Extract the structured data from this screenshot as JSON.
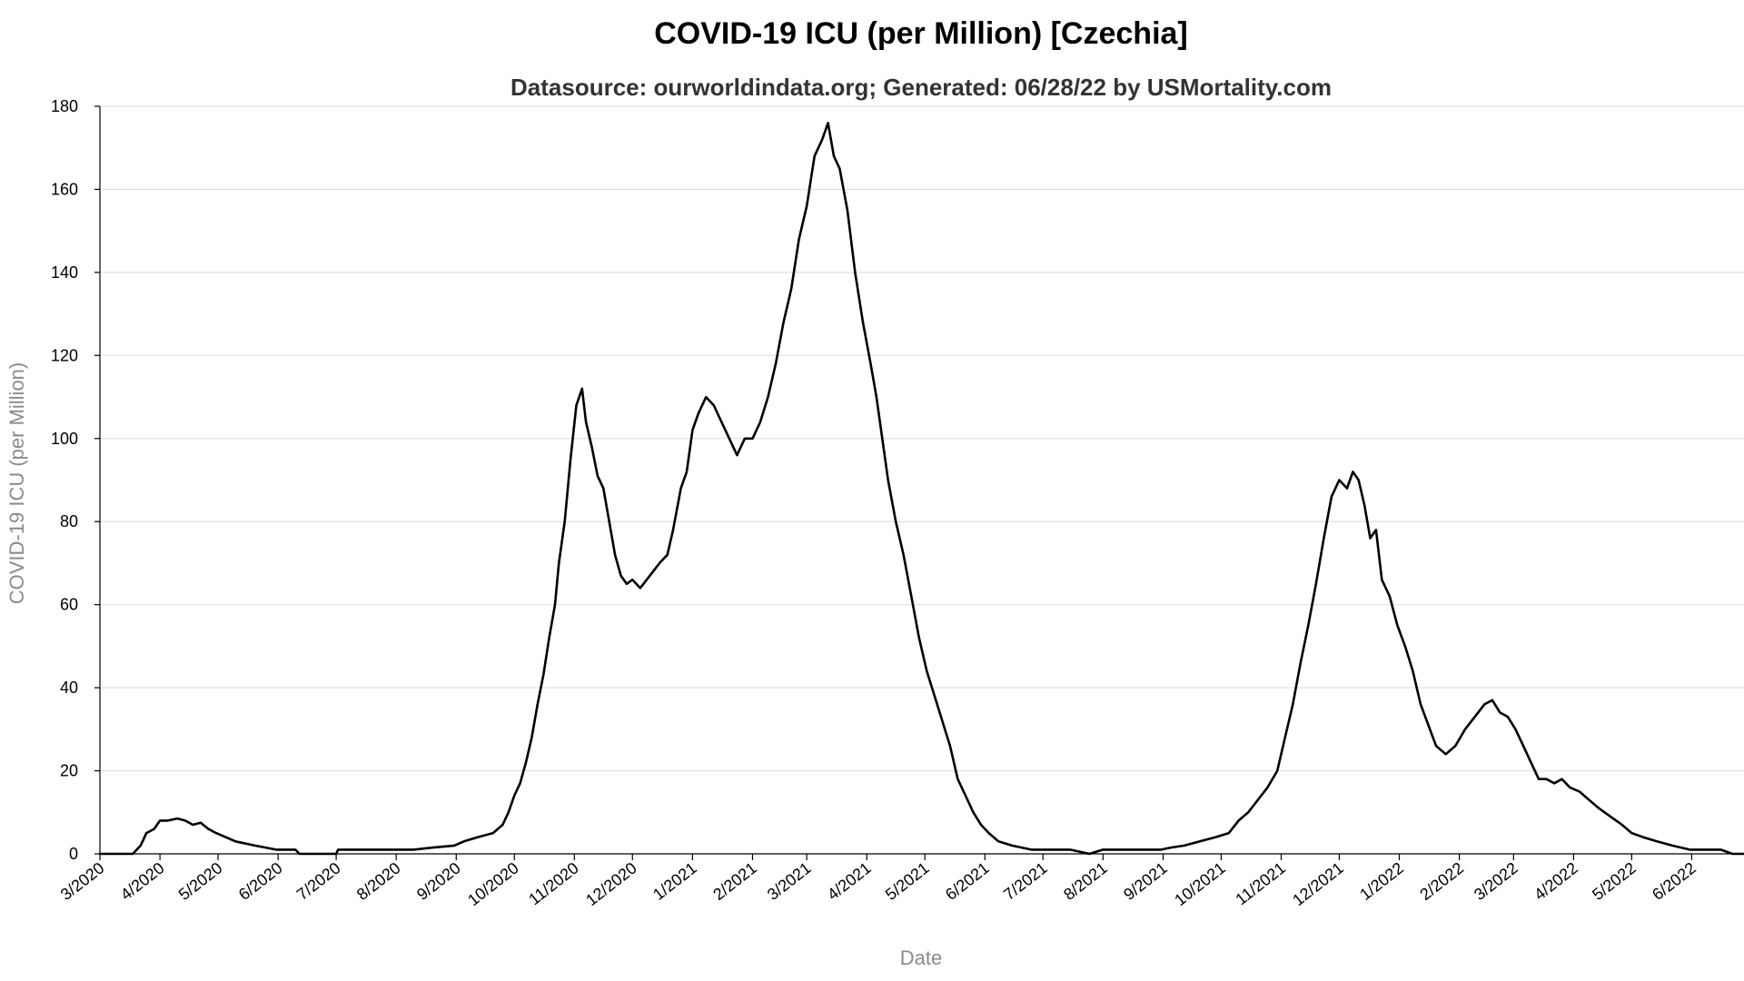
{
  "chart_data": {
    "type": "line",
    "title": "COVID-19 ICU (per Million) [Czechia]",
    "subtitle": "Datasource: ourworldindata.org; Generated: 06/28/22 by USMortality.com",
    "xlabel": "Date",
    "ylabel": "COVID-19 ICU (per Million)",
    "x_range": [
      "2020-03-01",
      "2022-06-28"
    ],
    "ylim": [
      0,
      180
    ],
    "y_ticks": [
      0,
      20,
      40,
      60,
      80,
      100,
      120,
      140,
      160,
      180
    ],
    "x_ticks": [
      {
        "date": "2020-03-01",
        "label": "3/2020"
      },
      {
        "date": "2020-04-01",
        "label": "4/2020"
      },
      {
        "date": "2020-05-01",
        "label": "5/2020"
      },
      {
        "date": "2020-06-01",
        "label": "6/2020"
      },
      {
        "date": "2020-07-01",
        "label": "7/2020"
      },
      {
        "date": "2020-08-01",
        "label": "8/2020"
      },
      {
        "date": "2020-09-01",
        "label": "9/2020"
      },
      {
        "date": "2020-10-01",
        "label": "10/2020"
      },
      {
        "date": "2020-11-01",
        "label": "11/2020"
      },
      {
        "date": "2020-12-01",
        "label": "12/2020"
      },
      {
        "date": "2021-01-01",
        "label": "1/2021"
      },
      {
        "date": "2021-02-01",
        "label": "2/2021"
      },
      {
        "date": "2021-03-01",
        "label": "3/2021"
      },
      {
        "date": "2021-04-01",
        "label": "4/2021"
      },
      {
        "date": "2021-05-01",
        "label": "5/2021"
      },
      {
        "date": "2021-06-01",
        "label": "6/2021"
      },
      {
        "date": "2021-07-01",
        "label": "7/2021"
      },
      {
        "date": "2021-08-01",
        "label": "8/2021"
      },
      {
        "date": "2021-09-01",
        "label": "9/2021"
      },
      {
        "date": "2021-10-01",
        "label": "10/2021"
      },
      {
        "date": "2021-11-01",
        "label": "11/2021"
      },
      {
        "date": "2021-12-01",
        "label": "12/2021"
      },
      {
        "date": "2022-01-01",
        "label": "1/2022"
      },
      {
        "date": "2022-02-01",
        "label": "2/2022"
      },
      {
        "date": "2022-03-01",
        "label": "3/2022"
      },
      {
        "date": "2022-04-01",
        "label": "4/2022"
      },
      {
        "date": "2022-05-01",
        "label": "5/2022"
      },
      {
        "date": "2022-06-01",
        "label": "6/2022"
      }
    ],
    "grid": true,
    "legend": "none",
    "line_color": "#000000",
    "series": [
      {
        "points": [
          [
            "2020-03-01",
            0
          ],
          [
            "2020-03-18",
            0
          ],
          [
            "2020-03-22",
            2
          ],
          [
            "2020-03-25",
            5
          ],
          [
            "2020-03-29",
            6
          ],
          [
            "2020-04-01",
            8
          ],
          [
            "2020-04-05",
            8
          ],
          [
            "2020-04-10",
            8.5
          ],
          [
            "2020-04-14",
            8
          ],
          [
            "2020-04-18",
            7
          ],
          [
            "2020-04-22",
            7.5
          ],
          [
            "2020-04-26",
            6
          ],
          [
            "2020-04-30",
            5
          ],
          [
            "2020-05-05",
            4
          ],
          [
            "2020-05-10",
            3
          ],
          [
            "2020-05-20",
            2
          ],
          [
            "2020-05-31",
            1
          ],
          [
            "2020-06-10",
            1
          ],
          [
            "2020-06-12",
            0
          ],
          [
            "2020-07-01",
            0
          ],
          [
            "2020-07-02",
            1
          ],
          [
            "2020-07-20",
            1
          ],
          [
            "2020-08-10",
            1
          ],
          [
            "2020-08-20",
            1.5
          ],
          [
            "2020-08-31",
            2
          ],
          [
            "2020-09-05",
            3
          ],
          [
            "2020-09-12",
            4
          ],
          [
            "2020-09-20",
            5
          ],
          [
            "2020-09-25",
            7
          ],
          [
            "2020-09-28",
            10
          ],
          [
            "2020-10-01",
            14
          ],
          [
            "2020-10-04",
            17
          ],
          [
            "2020-10-07",
            22
          ],
          [
            "2020-10-10",
            28
          ],
          [
            "2020-10-13",
            36
          ],
          [
            "2020-10-16",
            43
          ],
          [
            "2020-10-19",
            52
          ],
          [
            "2020-10-22",
            60
          ],
          [
            "2020-10-24",
            70
          ],
          [
            "2020-10-27",
            80
          ],
          [
            "2020-10-30",
            95
          ],
          [
            "2020-11-02",
            108
          ],
          [
            "2020-11-05",
            112
          ],
          [
            "2020-11-07",
            104
          ],
          [
            "2020-11-10",
            98
          ],
          [
            "2020-11-13",
            91
          ],
          [
            "2020-11-16",
            88
          ],
          [
            "2020-11-19",
            80
          ],
          [
            "2020-11-22",
            72
          ],
          [
            "2020-11-25",
            67
          ],
          [
            "2020-11-28",
            65
          ],
          [
            "2020-12-01",
            66
          ],
          [
            "2020-12-05",
            64
          ],
          [
            "2020-12-10",
            67
          ],
          [
            "2020-12-15",
            70
          ],
          [
            "2020-12-19",
            72
          ],
          [
            "2020-12-22",
            78
          ],
          [
            "2020-12-26",
            88
          ],
          [
            "2020-12-29",
            92
          ],
          [
            "2021-01-01",
            102
          ],
          [
            "2021-01-04",
            106
          ],
          [
            "2021-01-08",
            110
          ],
          [
            "2021-01-12",
            108
          ],
          [
            "2021-01-16",
            104
          ],
          [
            "2021-01-20",
            100
          ],
          [
            "2021-01-24",
            96
          ],
          [
            "2021-01-28",
            100
          ],
          [
            "2021-02-01",
            100
          ],
          [
            "2021-02-05",
            104
          ],
          [
            "2021-02-09",
            110
          ],
          [
            "2021-02-13",
            118
          ],
          [
            "2021-02-17",
            128
          ],
          [
            "2021-02-21",
            136
          ],
          [
            "2021-02-25",
            148
          ],
          [
            "2021-03-01",
            156
          ],
          [
            "2021-03-05",
            168
          ],
          [
            "2021-03-09",
            172
          ],
          [
            "2021-03-12",
            176
          ],
          [
            "2021-03-15",
            168
          ],
          [
            "2021-03-18",
            165
          ],
          [
            "2021-03-22",
            155
          ],
          [
            "2021-03-26",
            140
          ],
          [
            "2021-03-30",
            128
          ],
          [
            "2021-04-03",
            118
          ],
          [
            "2021-04-06",
            110
          ],
          [
            "2021-04-09",
            100
          ],
          [
            "2021-04-12",
            90
          ],
          [
            "2021-04-16",
            80
          ],
          [
            "2021-04-20",
            72
          ],
          [
            "2021-04-24",
            62
          ],
          [
            "2021-04-28",
            52
          ],
          [
            "2021-05-02",
            44
          ],
          [
            "2021-05-06",
            38
          ],
          [
            "2021-05-10",
            32
          ],
          [
            "2021-05-14",
            26
          ],
          [
            "2021-05-18",
            18
          ],
          [
            "2021-05-22",
            14
          ],
          [
            "2021-05-26",
            10
          ],
          [
            "2021-05-30",
            7
          ],
          [
            "2021-06-03",
            5
          ],
          [
            "2021-06-08",
            3
          ],
          [
            "2021-06-15",
            2
          ],
          [
            "2021-06-25",
            1
          ],
          [
            "2021-07-15",
            1
          ],
          [
            "2021-07-25",
            0
          ],
          [
            "2021-08-01",
            1
          ],
          [
            "2021-08-31",
            1
          ],
          [
            "2021-09-05",
            1.5
          ],
          [
            "2021-09-12",
            2
          ],
          [
            "2021-09-20",
            3
          ],
          [
            "2021-09-28",
            4
          ],
          [
            "2021-10-05",
            5
          ],
          [
            "2021-10-10",
            8
          ],
          [
            "2021-10-15",
            10
          ],
          [
            "2021-10-20",
            13
          ],
          [
            "2021-10-25",
            16
          ],
          [
            "2021-10-30",
            20
          ],
          [
            "2021-11-03",
            28
          ],
          [
            "2021-11-07",
            36
          ],
          [
            "2021-11-11",
            46
          ],
          [
            "2021-11-15",
            55
          ],
          [
            "2021-11-19",
            65
          ],
          [
            "2021-11-23",
            76
          ],
          [
            "2021-11-27",
            86
          ],
          [
            "2021-12-01",
            90
          ],
          [
            "2021-12-05",
            88
          ],
          [
            "2021-12-08",
            92
          ],
          [
            "2021-12-11",
            90
          ],
          [
            "2021-12-14",
            84
          ],
          [
            "2021-12-17",
            76
          ],
          [
            "2021-12-20",
            78
          ],
          [
            "2021-12-23",
            66
          ],
          [
            "2021-12-27",
            62
          ],
          [
            "2021-12-31",
            55
          ],
          [
            "2022-01-04",
            50
          ],
          [
            "2022-01-08",
            44
          ],
          [
            "2022-01-12",
            36
          ],
          [
            "2022-01-16",
            31
          ],
          [
            "2022-01-20",
            26
          ],
          [
            "2022-01-25",
            24
          ],
          [
            "2022-01-30",
            26
          ],
          [
            "2022-02-04",
            30
          ],
          [
            "2022-02-09",
            33
          ],
          [
            "2022-02-14",
            36
          ],
          [
            "2022-02-18",
            37
          ],
          [
            "2022-02-22",
            34
          ],
          [
            "2022-02-26",
            33
          ],
          [
            "2022-03-02",
            30
          ],
          [
            "2022-03-06",
            26
          ],
          [
            "2022-03-10",
            22
          ],
          [
            "2022-03-14",
            18
          ],
          [
            "2022-03-18",
            18
          ],
          [
            "2022-03-22",
            17
          ],
          [
            "2022-03-26",
            18
          ],
          [
            "2022-03-30",
            16
          ],
          [
            "2022-04-04",
            15
          ],
          [
            "2022-04-09",
            13
          ],
          [
            "2022-04-14",
            11
          ],
          [
            "2022-04-20",
            9
          ],
          [
            "2022-04-26",
            7
          ],
          [
            "2022-05-01",
            5
          ],
          [
            "2022-05-07",
            4
          ],
          [
            "2022-05-14",
            3
          ],
          [
            "2022-05-22",
            2
          ],
          [
            "2022-05-31",
            1
          ],
          [
            "2022-06-10",
            1
          ],
          [
            "2022-06-16",
            1
          ],
          [
            "2022-06-22",
            0
          ],
          [
            "2022-06-28",
            0
          ]
        ]
      }
    ]
  }
}
